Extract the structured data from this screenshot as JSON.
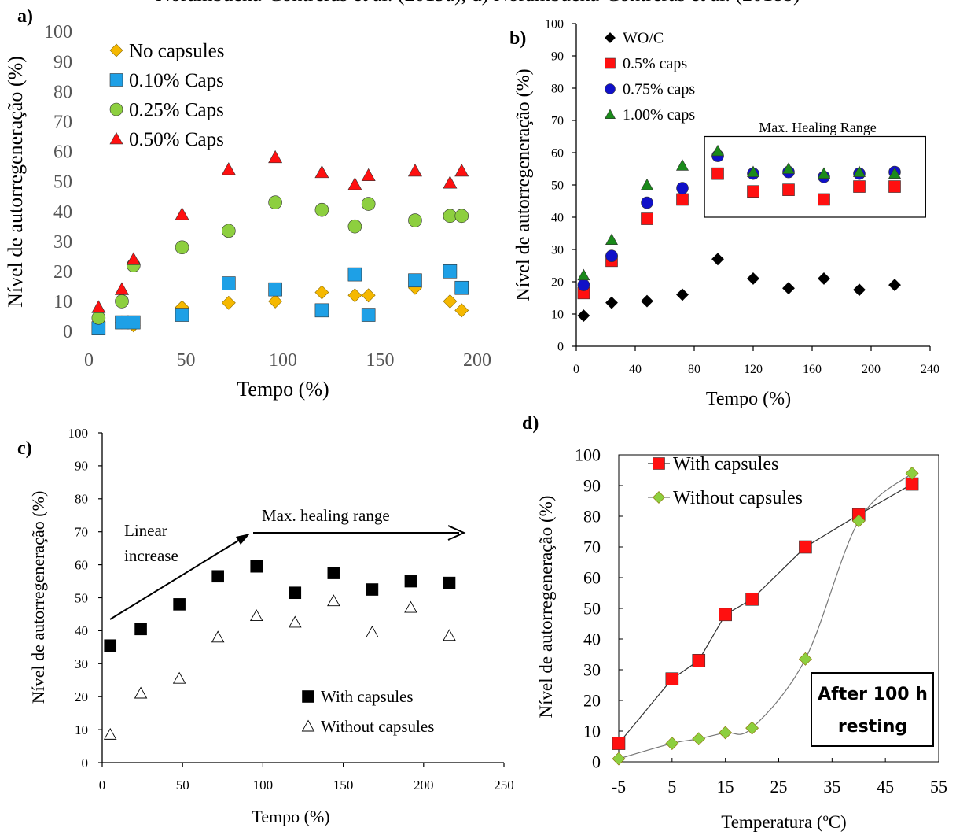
{
  "caption": "Norambuena-Contreras et al. (2019a), d) Norambuena-Contreras et al. (2018b)",
  "chart_data": [
    {
      "id": "a",
      "panel_label": "a)",
      "type": "scatter",
      "xlabel": "Tempo (%)",
      "ylabel": "Nível de autorregeneração (%)",
      "xlim": [
        0,
        200
      ],
      "ylim": [
        0,
        100
      ],
      "xticks": [
        0,
        50,
        100,
        150,
        200
      ],
      "yticks": [
        0,
        10,
        20,
        30,
        40,
        50,
        60,
        70,
        80,
        90,
        100
      ],
      "legend_position": "top-left",
      "series": [
        {
          "name": "No capsules",
          "marker": "diamond",
          "color": "#f5b800",
          "x": [
            5,
            17,
            23,
            48,
            72,
            96,
            120,
            137,
            144,
            168,
            186,
            192
          ],
          "y": [
            3,
            3,
            2,
            8,
            9.5,
            10,
            13,
            12,
            12,
            14.5,
            10,
            7
          ]
        },
        {
          "name": "0.10% Caps",
          "marker": "square",
          "color": "#1ea0e6",
          "x": [
            5,
            17,
            23,
            48,
            72,
            96,
            120,
            137,
            144,
            168,
            186,
            192
          ],
          "y": [
            1,
            3,
            3,
            5.5,
            16,
            14,
            7,
            19,
            5.5,
            17,
            20,
            14.5
          ]
        },
        {
          "name": "0.25% Caps",
          "marker": "circle",
          "color": "#8dcf3f",
          "x": [
            5,
            17,
            23,
            48,
            72,
            96,
            120,
            137,
            144,
            168,
            186,
            192
          ],
          "y": [
            4.5,
            10,
            22,
            28,
            33.5,
            43,
            40.5,
            35,
            42.5,
            37,
            38.5,
            38.5
          ]
        },
        {
          "name": "0.50% Caps",
          "marker": "triangle",
          "color": "#ff1010",
          "x": [
            5,
            17,
            23,
            48,
            72,
            96,
            120,
            137,
            144,
            168,
            186,
            192
          ],
          "y": [
            8,
            14,
            24,
            39,
            54,
            58,
            53,
            49,
            52,
            53.5,
            49.5,
            53.5
          ]
        }
      ]
    },
    {
      "id": "b",
      "panel_label": "b)",
      "type": "scatter",
      "xlabel": "Tempo (%)",
      "ylabel": "Nível de autorregeneração (%)",
      "xlim": [
        0,
        240
      ],
      "ylim": [
        0,
        100
      ],
      "xticks": [
        0,
        40,
        80,
        120,
        160,
        200,
        240
      ],
      "yticks": [
        0,
        10,
        20,
        30,
        40,
        50,
        60,
        70,
        80,
        90,
        100
      ],
      "legend_position": "top-left",
      "annotation": "Max. Healing Range",
      "annotation_box": {
        "x": [
          87,
          237
        ],
        "y": [
          40,
          65
        ]
      },
      "series": [
        {
          "name": "WO/C",
          "marker": "diamond",
          "color": "#000000",
          "x": [
            5,
            24,
            48,
            72,
            96,
            120,
            144,
            168,
            192,
            216
          ],
          "y": [
            9.5,
            13.5,
            14,
            16,
            27,
            21,
            18,
            21,
            17.5,
            19
          ]
        },
        {
          "name": "0.5% caps",
          "marker": "square",
          "color": "#ff1010",
          "x": [
            5,
            24,
            48,
            72,
            96,
            120,
            144,
            168,
            192,
            216
          ],
          "y": [
            16.5,
            26.5,
            39.5,
            45.5,
            53.5,
            48,
            48.5,
            45.5,
            49.5,
            49.5
          ]
        },
        {
          "name": "0.75% caps",
          "marker": "circle",
          "color": "#1010c8",
          "x": [
            5,
            24,
            48,
            72,
            96,
            120,
            144,
            168,
            192,
            216
          ],
          "y": [
            19,
            28,
            44.5,
            49,
            59,
            53.5,
            54,
            52.5,
            53.5,
            54
          ]
        },
        {
          "name": "1.00% caps",
          "marker": "triangle",
          "color": "#1a8a1a",
          "x": [
            5,
            24,
            48,
            72,
            96,
            120,
            144,
            168,
            192,
            216
          ],
          "y": [
            22,
            33,
            50,
            56,
            60.5,
            54,
            55,
            53.5,
            54,
            53.5
          ]
        }
      ]
    },
    {
      "id": "c",
      "panel_label": "c)",
      "type": "scatter",
      "xlabel": "Tempo (%)",
      "ylabel": "Nível de autorregeneração (%)",
      "xlim": [
        0,
        250
      ],
      "ylim": [
        0,
        100
      ],
      "xticks": [
        0,
        50,
        100,
        150,
        200,
        250
      ],
      "yticks": [
        0,
        10,
        20,
        30,
        40,
        50,
        60,
        70,
        80,
        90,
        100
      ],
      "legend_position": "bottom-right",
      "annotations": [
        "Linear increase",
        "Max. healing range"
      ],
      "series": [
        {
          "name": "With capsules",
          "marker": "square",
          "color": "#000000",
          "x": [
            5,
            24,
            48,
            72,
            96,
            120,
            144,
            168,
            192,
            216
          ],
          "y": [
            35.5,
            40.5,
            48,
            56.5,
            59.5,
            51.5,
            57.5,
            52.5,
            55,
            54.5
          ]
        },
        {
          "name": "Without capsules",
          "marker": "open-triangle",
          "color": "#000000",
          "x": [
            5,
            24,
            48,
            72,
            96,
            120,
            144,
            168,
            192,
            216
          ],
          "y": [
            8.5,
            21,
            25.5,
            38,
            44.5,
            42.5,
            49,
            39.5,
            47,
            38.5
          ]
        }
      ]
    },
    {
      "id": "d",
      "panel_label": "d)",
      "type": "line",
      "xlabel": "Temperatura (ºC)",
      "ylabel": "Nível de autorregeneração (%)",
      "xlim": [
        -5,
        55
      ],
      "ylim": [
        0,
        100
      ],
      "xticks": [
        -5,
        5,
        15,
        25,
        35,
        45,
        55
      ],
      "yticks": [
        0,
        10,
        20,
        30,
        40,
        50,
        60,
        70,
        80,
        90,
        100
      ],
      "legend_position": "top-left",
      "annotation": "After 100 h resting",
      "series": [
        {
          "name": "With capsules",
          "marker": "square",
          "color": "#ff1010",
          "x": [
            -5,
            5,
            10,
            15,
            20,
            30,
            40,
            50
          ],
          "y": [
            6,
            27,
            33,
            48,
            53,
            70,
            80.5,
            90.5
          ]
        },
        {
          "name": "Without capsules",
          "marker": "diamond",
          "color": "#8dcf3f",
          "x": [
            -5,
            5,
            10,
            15,
            20,
            30,
            40,
            50
          ],
          "y": [
            1,
            6,
            7.5,
            9.5,
            11,
            33.5,
            78.5,
            94
          ]
        }
      ]
    }
  ]
}
